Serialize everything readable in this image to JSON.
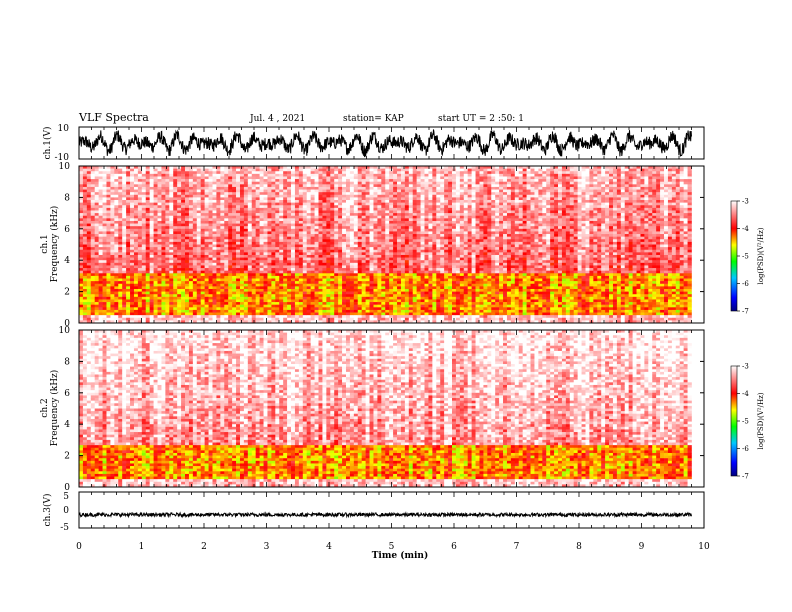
{
  "header": {
    "title": "VLF Spectra",
    "date": "Jul. 4 , 2021",
    "station": "station= KAP",
    "start": "start UT =  2 :50: 1"
  },
  "chart_data": [
    {
      "type": "line",
      "panel": "ch1-waveform",
      "ylabel": "ch.1(V)",
      "ylim": [
        -10,
        10
      ],
      "yticks": [
        "10",
        "-10"
      ],
      "xlim": [
        0,
        10
      ],
      "description_values": "dense waveform oscillating roughly between -9 and 9 V over 0 to 9.8 min",
      "x_end": 9.8,
      "amplitude": 9
    },
    {
      "type": "heatmap",
      "panel": "ch1-spectrogram",
      "ylabel": "ch.1\nFrequency (kHz)",
      "ylabel_top": "ch.1",
      "ylabel_bottom": "Frequency (kHz)",
      "ylim": [
        0,
        10
      ],
      "yticks": [
        "0",
        "2",
        "4",
        "6",
        "8",
        "10"
      ],
      "xlim": [
        0,
        10
      ],
      "x_end": 9.8,
      "colorbar": {
        "label": "log(PSD)(V²/Hz)",
        "range": [
          -7,
          -3
        ],
        "ticks": [
          "-3",
          "-4",
          "-5",
          "-6",
          "-7"
        ]
      },
      "bands": [
        {
          "f_low": 0.5,
          "f_high": 3.2,
          "level": -4.3
        },
        {
          "f_low": 3.2,
          "f_high": 10,
          "level": -3.6
        }
      ]
    },
    {
      "type": "heatmap",
      "panel": "ch2-spectrogram",
      "ylabel": "ch.2\nFrequency (kHz)",
      "ylabel_top": "ch.2",
      "ylabel_bottom": "Frequency (kHz)",
      "ylim": [
        0,
        10
      ],
      "yticks": [
        "0",
        "2",
        "4",
        "6",
        "8",
        "10"
      ],
      "xlim": [
        0,
        10
      ],
      "x_end": 9.8,
      "colorbar": {
        "label": "log(PSD)(V²/Hz)",
        "range": [
          -7,
          -3
        ],
        "ticks": [
          "-3",
          "-4",
          "-5",
          "-6",
          "-7"
        ]
      },
      "bands": [
        {
          "f_low": 0.5,
          "f_high": 2.6,
          "level": -4.3
        },
        {
          "f_low": 2.6,
          "f_high": 10,
          "level": -3.4
        }
      ]
    },
    {
      "type": "line",
      "panel": "ch3-waveform",
      "ylabel": "ch.3(V)",
      "ylim": [
        -5,
        5
      ],
      "yticks": [
        "5",
        "0",
        "-5"
      ],
      "xlim": [
        0,
        10
      ],
      "x_end": 9.8,
      "offset": -1.3,
      "amplitude": 0.5,
      "xlabel": "Time (min)",
      "xticks": [
        "0",
        "1",
        "2",
        "3",
        "4",
        "5",
        "6",
        "7",
        "8",
        "9",
        "10"
      ]
    }
  ]
}
